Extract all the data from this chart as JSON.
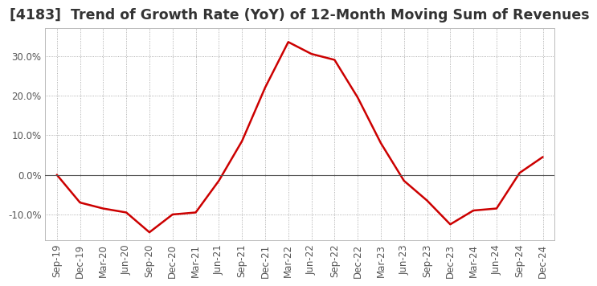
{
  "title": "[4183]  Trend of Growth Rate (YoY) of 12-Month Moving Sum of Revenues",
  "x_labels": [
    "Sep-19",
    "Dec-19",
    "Mar-20",
    "Jun-20",
    "Sep-20",
    "Dec-20",
    "Mar-21",
    "Jun-21",
    "Sep-21",
    "Dec-21",
    "Mar-22",
    "Jun-22",
    "Sep-22",
    "Dec-22",
    "Mar-23",
    "Jun-23",
    "Sep-23",
    "Dec-23",
    "Mar-24",
    "Jun-24",
    "Sep-24",
    "Dec-24"
  ],
  "y_values": [
    0.0,
    -7.0,
    -8.5,
    -9.5,
    -14.5,
    -10.0,
    -9.5,
    -1.5,
    8.5,
    22.0,
    33.5,
    30.5,
    29.0,
    19.5,
    8.0,
    -1.5,
    -6.5,
    -12.5,
    -9.0,
    -8.5,
    0.5,
    4.5
  ],
  "line_color": "#cc0000",
  "line_width": 1.8,
  "ylim": [
    -16.5,
    37.0
  ],
  "yticks": [
    -10.0,
    0.0,
    10.0,
    20.0,
    30.0
  ],
  "background_color": "#ffffff",
  "grid_color": "#999999",
  "zero_line_color": "#555555",
  "title_fontsize": 12.5,
  "tick_fontsize": 8.5,
  "title_color": "#333333",
  "tick_color": "#555555"
}
